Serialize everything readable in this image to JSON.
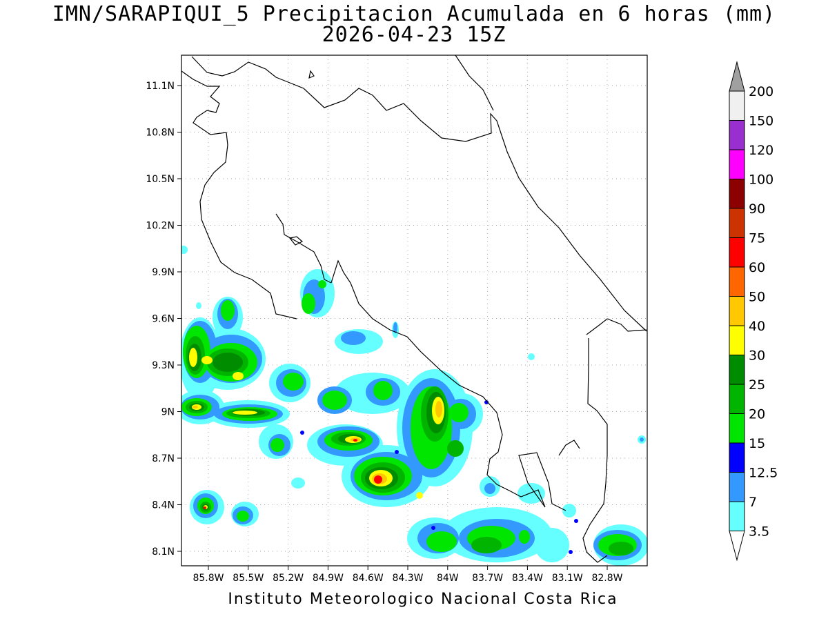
{
  "title": {
    "line1": "IMN/SARAPIQUI_5 Precipitacion Acumulada en 6 horas (mm)",
    "line2": "2026-04-23 15Z"
  },
  "credit": "Instituto Meteorologico Nacional Costa Rica",
  "axes": {
    "lat_labels": [
      "11.1N",
      "10.8N",
      "10.5N",
      "10.2N",
      "9.9N",
      "9.6N",
      "9.3N",
      "9N",
      "8.7N",
      "8.4N",
      "8.1N"
    ],
    "lon_labels": [
      "85.8W",
      "85.5W",
      "85.2W",
      "84.9W",
      "84.6W",
      "84.3W",
      "84W",
      "83.7W",
      "83.4W",
      "83.1W",
      "82.8W"
    ]
  },
  "colorbar": {
    "labels": [
      "200",
      "150",
      "120",
      "100",
      "90",
      "75",
      "60",
      "50",
      "40",
      "30",
      "25",
      "20",
      "15",
      "12.5",
      "7",
      "3.5"
    ],
    "colors": [
      "#a0a0a0",
      "#f0f0f0",
      "#9a2fcf",
      "#ff00ff",
      "#8c0000",
      "#cc3300",
      "#ff0000",
      "#ff6600",
      "#ffc800",
      "#ffff00",
      "#008c00",
      "#00b400",
      "#00e600",
      "#0000ff",
      "#3399ff",
      "#66ffff"
    ]
  }
}
